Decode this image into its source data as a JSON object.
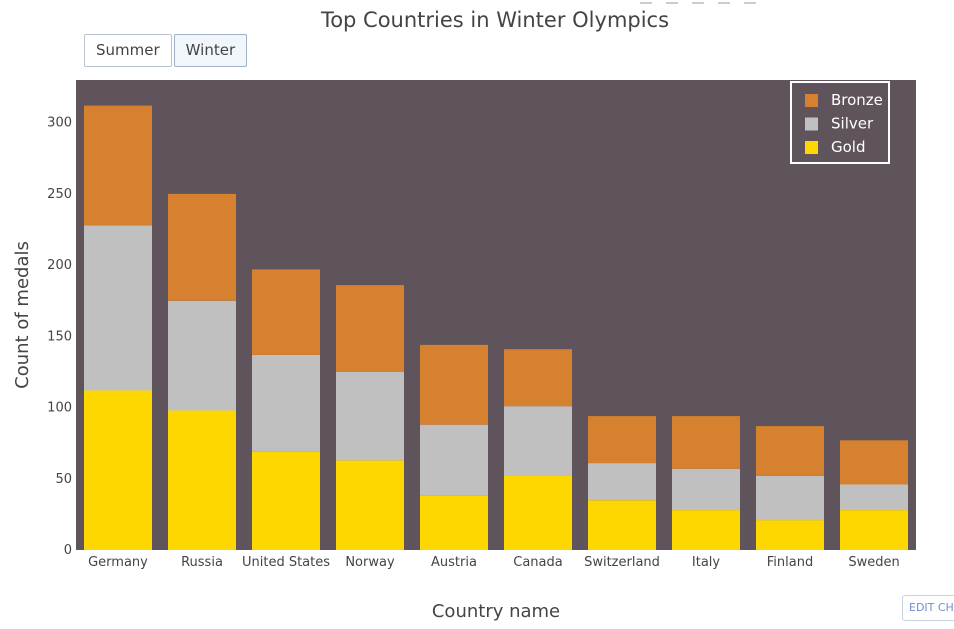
{
  "chart_data": {
    "type": "bar",
    "barmode": "stack",
    "title": "Top Countries in Winter Olympics",
    "xlabel": "Country name",
    "ylabel": "Count of medals",
    "ylim": [
      0,
      330
    ],
    "yticks": [
      0,
      50,
      100,
      150,
      200,
      250,
      300
    ],
    "categories": [
      "Germany",
      "Russia",
      "United States",
      "Norway",
      "Austria",
      "Canada",
      "Switzerland",
      "Italy",
      "Finland",
      "Sweden"
    ],
    "series": [
      {
        "name": "Gold",
        "color": "#ffd700",
        "values": [
          112,
          98,
          69,
          63,
          38,
          52,
          35,
          28,
          21,
          28
        ]
      },
      {
        "name": "Silver",
        "color": "#c0c0c0",
        "values": [
          116,
          77,
          68,
          62,
          50,
          49,
          26,
          29,
          31,
          18
        ]
      },
      {
        "name": "Bronze",
        "color": "#d6812f",
        "values": [
          84,
          75,
          60,
          61,
          56,
          40,
          33,
          37,
          35,
          31
        ]
      }
    ],
    "legend_order": [
      "Bronze",
      "Silver",
      "Gold"
    ],
    "legend_position": "top-right",
    "plot_background": "#5f535c",
    "grid": false
  },
  "controls": {
    "buttons": [
      {
        "label": "Summer",
        "active": false
      },
      {
        "label": "Winter",
        "active": true
      }
    ],
    "edit_label": "EDIT CHART"
  }
}
